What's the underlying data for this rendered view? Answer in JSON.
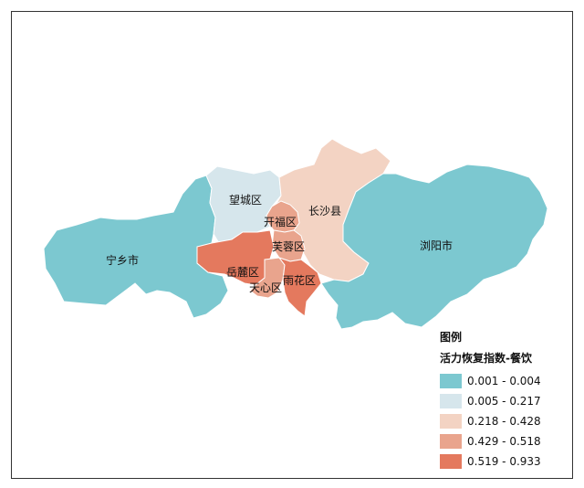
{
  "map": {
    "colors": {
      "c1": "#7cc8d0",
      "c2": "#d6e6ec",
      "c3": "#f3d3c3",
      "c4": "#e9a48d",
      "c5": "#e4795e"
    },
    "regions": [
      {
        "name": "宁乡市",
        "class": "0.001 - 0.004"
      },
      {
        "name": "望城区",
        "class": "0.005 - 0.217"
      },
      {
        "name": "开福区",
        "class": "0.429 - 0.518"
      },
      {
        "name": "长沙县",
        "class": "0.218 - 0.428"
      },
      {
        "name": "芙蓉区",
        "class": "0.429 - 0.518"
      },
      {
        "name": "岳麓区",
        "class": "0.519 - 0.933"
      },
      {
        "name": "天心区",
        "class": "0.429 - 0.518"
      },
      {
        "name": "雨花区",
        "class": "0.519 - 0.933"
      },
      {
        "name": "浏阳市",
        "class": "0.001 - 0.004"
      }
    ]
  },
  "legend": {
    "title": "图例",
    "subtitle": "活力恢复指数-餐饮",
    "items": [
      {
        "label": "0.001 - 0.004",
        "color": "#7cc8d0"
      },
      {
        "label": "0.005 - 0.217",
        "color": "#d6e6ec"
      },
      {
        "label": "0.218 - 0.428",
        "color": "#f3d3c3"
      },
      {
        "label": "0.429 - 0.518",
        "color": "#e9a48d"
      },
      {
        "label": "0.519 - 0.933",
        "color": "#e4795e"
      }
    ]
  }
}
